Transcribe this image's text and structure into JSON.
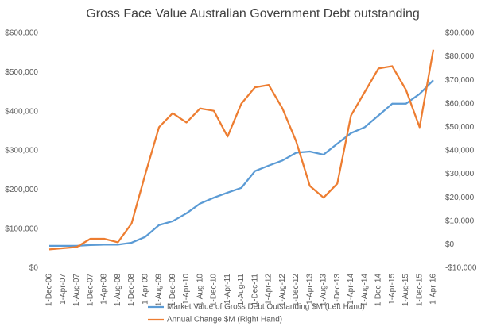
{
  "chart_data": {
    "type": "line",
    "title": "Gross Face Value Australian Government Debt outstanding",
    "categories": [
      "1-Dec-06",
      "1-Apr-07",
      "1-Aug-07",
      "1-Dec-07",
      "1-Apr-08",
      "1-Aug-08",
      "1-Dec-08",
      "1-Apr-09",
      "1-Aug-09",
      "1-Dec-09",
      "1-Apr-10",
      "1-Aug-10",
      "1-Dec-10",
      "1-Apr-11",
      "1-Aug-11",
      "1-Dec-11",
      "1-Apr-12",
      "1-Aug-12",
      "1-Dec-12",
      "1-Apr-13",
      "1-Aug-13",
      "1-Dec-13",
      "1-Apr-14",
      "1-Aug-14",
      "1-Dec-14",
      "1-Apr-15",
      "1-Aug-15",
      "1-Dec-15",
      "1-Apr-16"
    ],
    "series": [
      {
        "name": "Market Value of Gross Debt Outstanding $M (Left Hand)",
        "color": "#5b9bd5",
        "axis": "y",
        "values": [
          57000,
          57000,
          57000,
          59000,
          60000,
          60000,
          65000,
          80000,
          110000,
          120000,
          140000,
          165000,
          180000,
          193000,
          205000,
          248000,
          262000,
          275000,
          295000,
          298000,
          290000,
          318000,
          345000,
          360000,
          390000,
          420000,
          420000,
          445000,
          480000
        ]
      },
      {
        "name": "Annual Change $M (Right Hand)",
        "color": "#ed7d31",
        "axis": "y2",
        "values": [
          -2000,
          -1500,
          -1000,
          2500,
          2500,
          1000,
          9000,
          30000,
          50000,
          56000,
          52000,
          58000,
          57000,
          46000,
          60000,
          67000,
          68000,
          58000,
          44000,
          25000,
          20000,
          26000,
          55000,
          65000,
          75000,
          76000,
          66000,
          50000,
          83000
        ]
      }
    ],
    "ylim": [
      0,
      600000
    ],
    "yticks": [
      {
        "value": 0,
        "label": "$0"
      },
      {
        "value": 100000,
        "label": "$100,000"
      },
      {
        "value": 200000,
        "label": "$200,000"
      },
      {
        "value": 300000,
        "label": "$300,000"
      },
      {
        "value": 400000,
        "label": "$400,000"
      },
      {
        "value": 500000,
        "label": "$500,000"
      },
      {
        "value": 600000,
        "label": "$600,000"
      }
    ],
    "y2lim": [
      -10000,
      90000
    ],
    "y2ticks": [
      {
        "value": -10000,
        "label": "-$10,000"
      },
      {
        "value": 0,
        "label": "$0"
      },
      {
        "value": 10000,
        "label": "$10,000"
      },
      {
        "value": 20000,
        "label": "$20,000"
      },
      {
        "value": 30000,
        "label": "$30,000"
      },
      {
        "value": 40000,
        "label": "$40,000"
      },
      {
        "value": 50000,
        "label": "$50,000"
      },
      {
        "value": 60000,
        "label": "$60,000"
      },
      {
        "value": 70000,
        "label": "$70,000"
      },
      {
        "value": 80000,
        "label": "$80,000"
      },
      {
        "value": 90000,
        "label": "$90,000"
      }
    ],
    "grid": false
  }
}
